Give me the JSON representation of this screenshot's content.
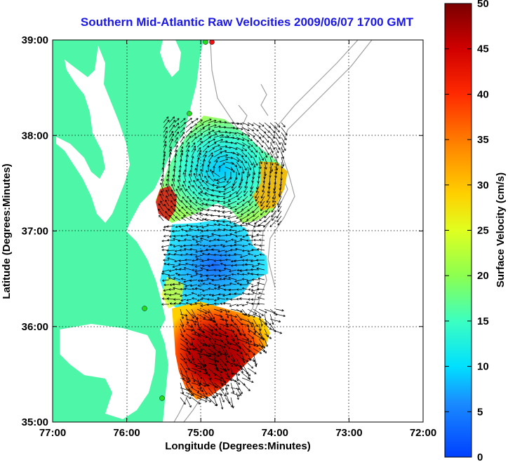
{
  "title": "Southern Mid-Atlantic Raw Velocities 2009/06/07 1700 GMT",
  "xlabel": "Longitude (Degrees:Minutes)",
  "ylabel": "Latitude (Degrees:Minutes)",
  "colorbar_label": "Surface Velocity (cm/s)",
  "x_ticks": [
    "77:00",
    "76:00",
    "75:00",
    "74:00",
    "73:00",
    "72:00"
  ],
  "y_ticks": [
    "39:00",
    "38:00",
    "37:00",
    "36:00",
    "35:00"
  ],
  "colorbar_ticks": [
    "50",
    "45",
    "40",
    "35",
    "30",
    "25",
    "20",
    "15",
    "10",
    "5",
    "0"
  ],
  "colors": {
    "land": "#4ef7a8",
    "water": "#ffffff",
    "bathymetry": "#a0a0a0",
    "title": "#1a16e8",
    "station": "#22dd22",
    "station_red": "#ee1111"
  },
  "map_extent": {
    "lon_west": -77,
    "lon_east": -72,
    "lat_south": 35,
    "lat_north": 39
  },
  "colorbar_range": [
    0,
    50
  ]
}
